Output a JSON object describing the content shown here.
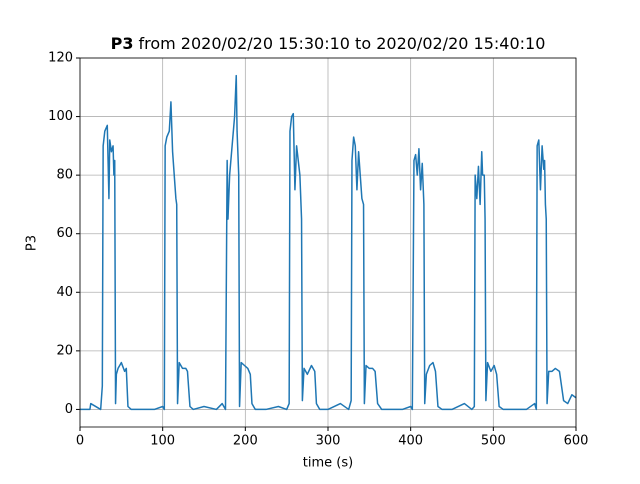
{
  "chart_data": {
    "type": "line",
    "title_parts": [
      "P3",
      "from 2020/02/20 15:30:10 to 2020/02/20 15:40:10"
    ],
    "x_label": "time (s)",
    "y_label": "P3",
    "color": "#1f77b4",
    "grid": true,
    "xlim": [
      0,
      600
    ],
    "xticks": [
      0,
      100,
      200,
      300,
      400,
      500,
      600
    ],
    "ylim": [
      -6,
      120
    ],
    "yticks": [
      0,
      20,
      40,
      60,
      80,
      100,
      120
    ],
    "x": [
      0,
      12,
      13,
      25,
      27,
      28,
      30,
      33,
      35,
      36,
      38,
      40,
      41,
      42,
      43,
      44,
      46,
      50,
      54,
      56,
      58,
      62,
      75,
      90,
      100,
      102,
      103,
      105,
      108,
      110,
      112,
      114,
      116,
      117,
      118,
      120,
      124,
      128,
      130,
      133,
      137,
      150,
      165,
      172,
      176,
      178,
      179,
      181,
      184,
      187,
      189,
      190,
      192,
      193,
      195,
      199,
      203,
      206,
      208,
      212,
      225,
      240,
      250,
      253,
      254,
      256,
      258,
      260,
      262,
      264,
      266,
      268,
      269,
      271,
      275,
      280,
      284,
      286,
      290,
      300,
      315,
      325,
      328,
      329,
      331,
      333,
      335,
      337,
      339,
      341,
      343,
      344,
      346,
      350,
      354,
      357,
      360,
      365,
      375,
      390,
      400,
      402,
      403,
      404,
      406,
      408,
      410,
      412,
      414,
      416,
      417,
      419,
      423,
      427,
      430,
      433,
      438,
      450,
      465,
      474,
      477,
      478,
      480,
      482,
      484,
      486,
      487,
      489,
      490,
      491,
      493,
      497,
      501,
      504,
      507,
      512,
      525,
      540,
      550,
      552,
      553,
      555,
      557,
      559,
      561,
      562,
      563,
      564,
      565,
      567,
      571,
      575,
      580,
      585,
      590,
      595,
      600
    ],
    "values": [
      0,
      0,
      2,
      0,
      8,
      90,
      95,
      97,
      72,
      92,
      88,
      90,
      80,
      85,
      2,
      12,
      14,
      16,
      13,
      14,
      1,
      0,
      0,
      0,
      1,
      0,
      90,
      93,
      95,
      105,
      88,
      80,
      72,
      70,
      2,
      16,
      14,
      14,
      13,
      1,
      0,
      1,
      0,
      2,
      0,
      85,
      65,
      80,
      90,
      100,
      114,
      95,
      80,
      1,
      16,
      15,
      14,
      12,
      2,
      0,
      0,
      1,
      0,
      2,
      95,
      100,
      101,
      75,
      90,
      85,
      80,
      65,
      3,
      14,
      12,
      15,
      13,
      2,
      0,
      0,
      2,
      0,
      3,
      85,
      93,
      90,
      75,
      88,
      80,
      72,
      70,
      2,
      15,
      14,
      14,
      13,
      2,
      0,
      0,
      0,
      1,
      0,
      42,
      85,
      87,
      80,
      89,
      75,
      84,
      70,
      2,
      12,
      15,
      16,
      13,
      1,
      0,
      0,
      2,
      0,
      1,
      80,
      72,
      83,
      70,
      88,
      80,
      80,
      65,
      3,
      16,
      13,
      15,
      12,
      1,
      0,
      0,
      0,
      2,
      0,
      90,
      92,
      75,
      90,
      82,
      85,
      70,
      65,
      2,
      13,
      13,
      14,
      13,
      3,
      2,
      5,
      4
    ]
  }
}
